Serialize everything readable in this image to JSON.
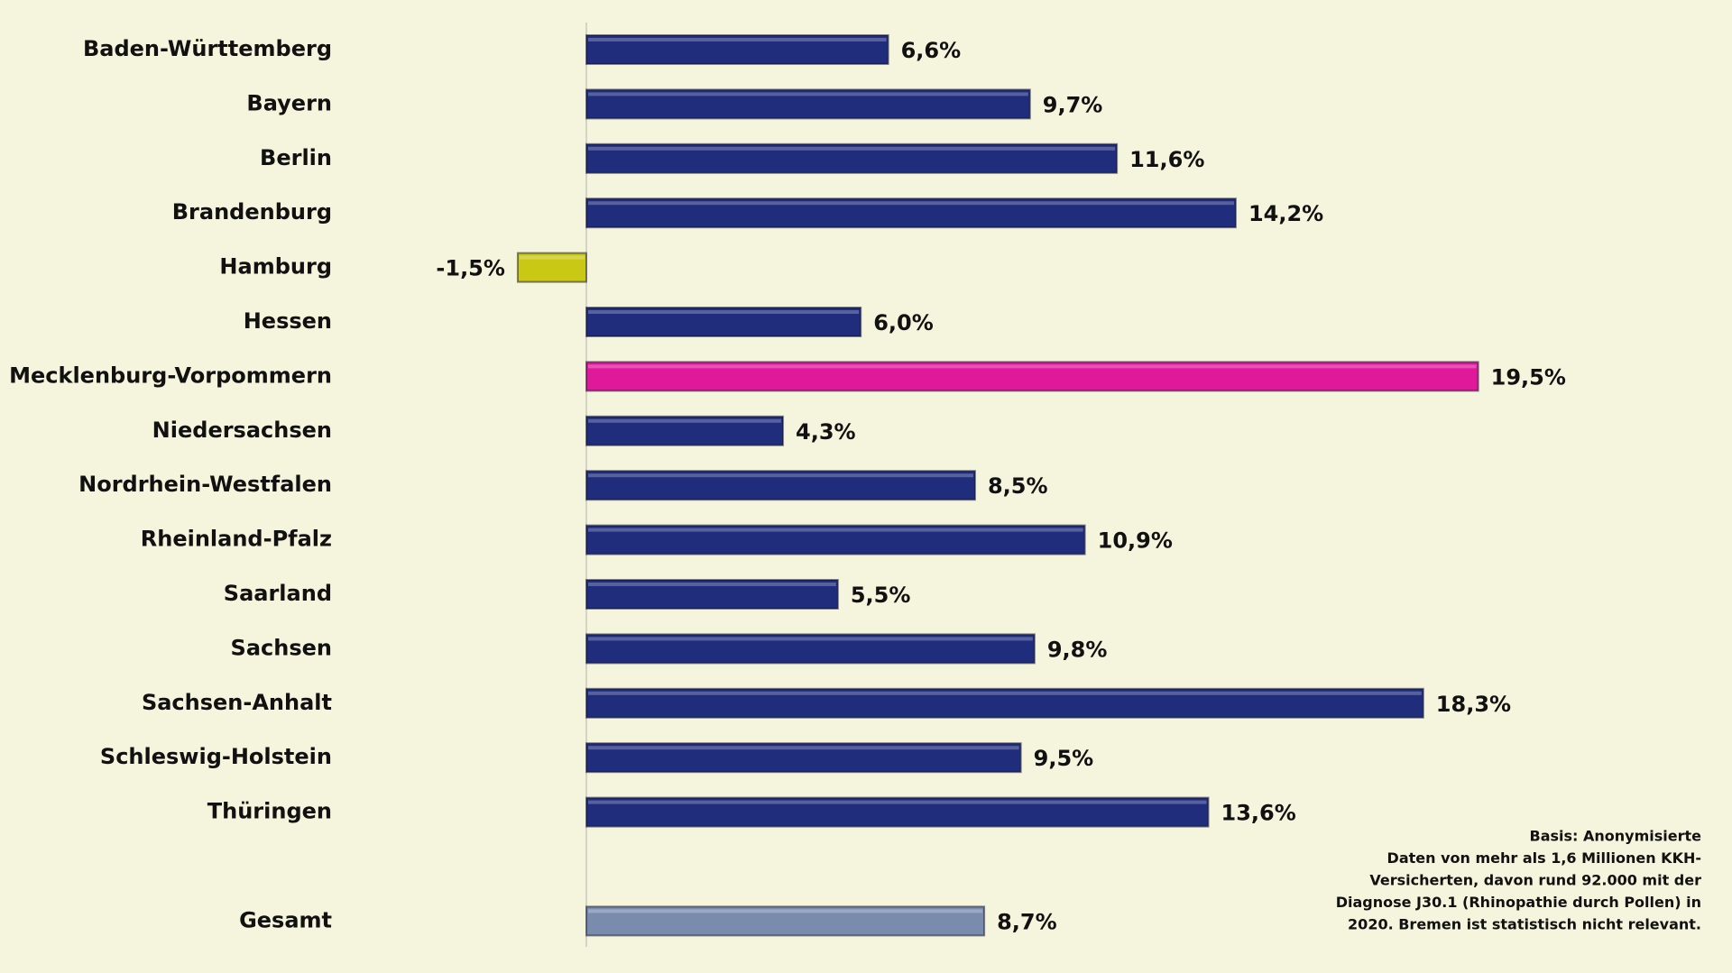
{
  "chart_data": {
    "type": "bar",
    "orientation": "horizontal",
    "categories": [
      "Baden-Württemberg",
      "Bayern",
      "Berlin",
      "Brandenburg",
      "Hamburg",
      "Hessen",
      "Mecklenburg-Vorpommern",
      "Niedersachsen",
      "Nordrhein-Westfalen",
      "Rheinland-Pfalz",
      "Saarland",
      "Sachsen",
      "Sachsen-Anhalt",
      "Schleswig-Holstein",
      "Thüringen",
      null,
      "Gesamt"
    ],
    "values": [
      6.6,
      9.7,
      11.6,
      14.2,
      -1.5,
      6.0,
      19.5,
      4.3,
      8.5,
      10.9,
      5.5,
      9.8,
      18.3,
      9.5,
      13.6,
      null,
      8.7
    ],
    "value_labels": [
      "6,6%",
      "9,7%",
      "11,6%",
      "14,2%",
      "-1,5%",
      "6,0%",
      "19,5%",
      "4,3%",
      "8,5%",
      "10,9%",
      "5,5%",
      "9,8%",
      "18,3%",
      "9,5%",
      "13,6%",
      null,
      "8,7%"
    ],
    "colors": [
      "#1f2d7c",
      "#1f2d7c",
      "#1f2d7c",
      "#1f2d7c",
      "#c9c915",
      "#1f2d7c",
      "#e0189a",
      "#1f2d7c",
      "#1f2d7c",
      "#1f2d7c",
      "#1f2d7c",
      "#1f2d7c",
      "#1f2d7c",
      "#1f2d7c",
      "#1f2d7c",
      null,
      "#7a8cae"
    ],
    "note": [
      "Basis: Anonymisierte",
      "Daten von mehr als 1,6 Millionen KKH-",
      "Versicherten, davon rund 92.000 mit der",
      "Diagnose J30.1 (Rhinopathie durch Pollen) in",
      "2020. Bremen ist statistisch nicht relevant."
    ]
  }
}
